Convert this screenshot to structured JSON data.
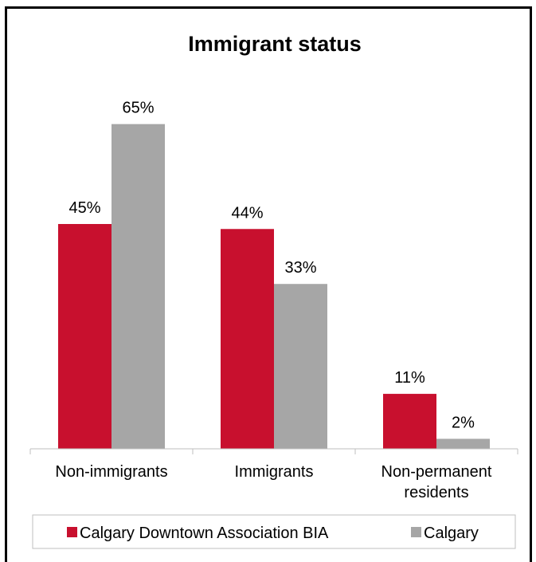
{
  "chart_data": {
    "type": "bar",
    "title": "Immigrant status",
    "categories": [
      [
        "Non-immigrants"
      ],
      [
        "Immigrants"
      ],
      [
        "Non-permanent",
        "residents"
      ]
    ],
    "series": [
      {
        "name": "Calgary Downtown Association BIA",
        "values": [
          45,
          44,
          11
        ],
        "labels": [
          "45%",
          "44%",
          "11%"
        ]
      },
      {
        "name": "Calgary",
        "values": [
          65,
          33,
          2
        ],
        "labels": [
          "65%",
          "33%",
          "2%"
        ]
      }
    ],
    "ylim": [
      0,
      75
    ],
    "grid": false,
    "legend": "bottom",
    "colors": [
      "#c8102e",
      "#a6a6a6"
    ]
  }
}
